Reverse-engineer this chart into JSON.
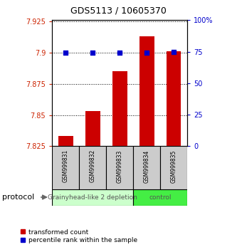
{
  "title": "GDS5113 / 10605370",
  "samples": [
    "GSM999831",
    "GSM999832",
    "GSM999833",
    "GSM999834",
    "GSM999835"
  ],
  "bar_values": [
    7.833,
    7.853,
    7.885,
    7.913,
    7.901
  ],
  "percentile_values": [
    74,
    74,
    74,
    74,
    75
  ],
  "ylim": [
    7.825,
    7.926
  ],
  "yticks": [
    7.825,
    7.85,
    7.875,
    7.9,
    7.925
  ],
  "ytick_labels": [
    "7.825",
    "7.85",
    "7.875",
    "7.9",
    "7.925"
  ],
  "y2lim": [
    0,
    100
  ],
  "y2ticks": [
    0,
    25,
    50,
    75,
    100
  ],
  "y2tick_labels": [
    "0",
    "25",
    "50",
    "75",
    "100%"
  ],
  "bar_color": "#cc0000",
  "dot_color": "#0000cc",
  "groups": [
    {
      "label": "Grainyhead-like 2 depletion",
      "color": "#ccffcc",
      "count": 3
    },
    {
      "label": "control",
      "color": "#44ee44",
      "count": 2
    }
  ],
  "protocol_label": "protocol",
  "ybase": 7.825,
  "bar_width": 0.55,
  "left_axis_color": "#cc2200",
  "right_axis_color": "#0000cc",
  "background_color": "#ffffff",
  "legend_red_label": "transformed count",
  "legend_blue_label": "percentile rank within the sample",
  "title_fontsize": 9,
  "tick_fontsize": 7,
  "sample_fontsize": 5.5,
  "group_fontsize": 6.5
}
